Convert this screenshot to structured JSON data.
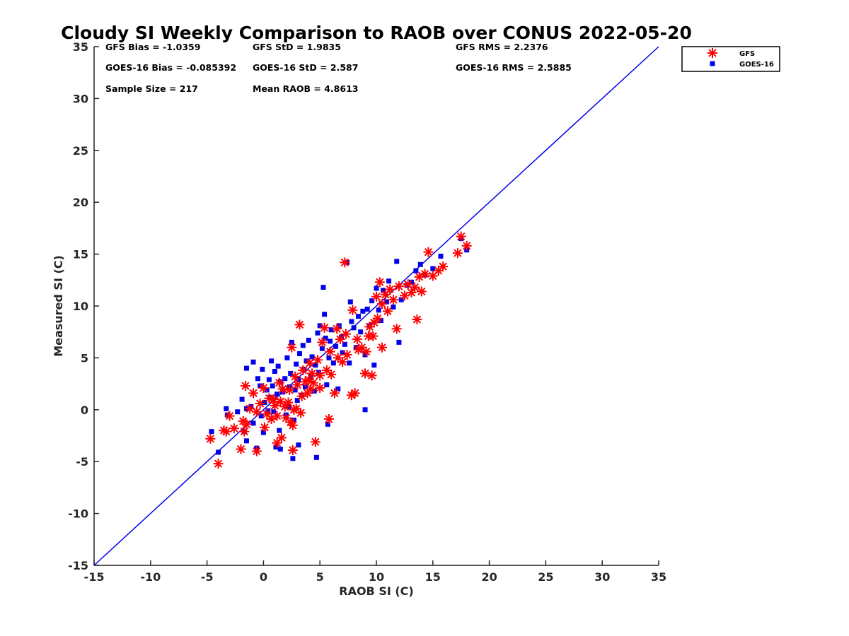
{
  "chart_data": {
    "type": "scatter",
    "title": "Cloudy SI Weekly Comparison to RAOB over CONUS 2022-05-20",
    "xlabel": "RAOB SI (C)",
    "ylabel": "Measured SI (C)",
    "xlim": [
      -15,
      35
    ],
    "ylim": [
      -15,
      35
    ],
    "x_ticks": [
      -15,
      -10,
      -5,
      0,
      5,
      10,
      15,
      20,
      25,
      30,
      35
    ],
    "y_ticks": [
      -15,
      -10,
      -5,
      0,
      5,
      10,
      15,
      20,
      25,
      30,
      35
    ],
    "grid": false,
    "legend_position": "top-right, outside plot",
    "reference_line": {
      "type": "one-to-one",
      "from": [
        -15,
        -15
      ],
      "to": [
        35,
        35
      ],
      "color": "#0000ee"
    },
    "stats": [
      {
        "label": "GFS Bias = -1.0359"
      },
      {
        "label": "GFS StD = 1.9835"
      },
      {
        "label": "GFS RMS = 2.2376"
      },
      {
        "label": "GOES-16 Bias = -0.085392"
      },
      {
        "label": "GOES-16 StD = 2.587"
      },
      {
        "label": "GOES-16 RMS = 2.5885"
      },
      {
        "label": "Sample Size = 217"
      },
      {
        "label": "Mean RAOB = 4.8613"
      }
    ],
    "series": [
      {
        "name": "GFS",
        "marker": "asterisk",
        "color": "#ff0000",
        "points": [
          [
            -4.7,
            -2.8
          ],
          [
            -4.0,
            -5.2
          ],
          [
            -3.5,
            -2.0
          ],
          [
            -3.3,
            -2.1
          ],
          [
            -3.0,
            -0.6
          ],
          [
            -2.6,
            -1.8
          ],
          [
            -2.0,
            -3.8
          ],
          [
            -1.8,
            -1.1
          ],
          [
            -1.7,
            -2.1
          ],
          [
            -1.5,
            -1.4
          ],
          [
            -1.6,
            2.3
          ],
          [
            -1.2,
            0.1
          ],
          [
            -0.9,
            1.6
          ],
          [
            -0.6,
            -0.2
          ],
          [
            -0.6,
            -4.0
          ],
          [
            -0.3,
            0.6
          ],
          [
            0.0,
            2.1
          ],
          [
            0.1,
            -1.7
          ],
          [
            0.3,
            -0.4
          ],
          [
            0.5,
            1.1
          ],
          [
            0.7,
            -0.9
          ],
          [
            0.9,
            1.0
          ],
          [
            1.0,
            0.4
          ],
          [
            1.2,
            -0.6
          ],
          [
            1.2,
            -3.2
          ],
          [
            1.4,
            2.6
          ],
          [
            1.5,
            0.8
          ],
          [
            1.6,
            -2.7
          ],
          [
            1.7,
            2.0
          ],
          [
            1.9,
            0.3
          ],
          [
            2.0,
            -0.8
          ],
          [
            2.2,
            0.7
          ],
          [
            2.3,
            1.9
          ],
          [
            2.4,
            -1.2
          ],
          [
            2.5,
            6.0
          ],
          [
            2.6,
            -1.5
          ],
          [
            2.6,
            -3.9
          ],
          [
            2.7,
            0.0
          ],
          [
            2.8,
            3.2
          ],
          [
            2.9,
            0.1
          ],
          [
            3.0,
            2.4
          ],
          [
            3.2,
            8.2
          ],
          [
            3.3,
            -0.3
          ],
          [
            3.4,
            1.3
          ],
          [
            3.5,
            3.8
          ],
          [
            3.7,
            2.7
          ],
          [
            3.9,
            1.6
          ],
          [
            4.0,
            2.9
          ],
          [
            4.1,
            4.5
          ],
          [
            4.2,
            2.0
          ],
          [
            4.3,
            3.5
          ],
          [
            4.4,
            2.6
          ],
          [
            4.6,
            -3.1
          ],
          [
            4.8,
            4.8
          ],
          [
            5.0,
            3.3
          ],
          [
            5.0,
            2.1
          ],
          [
            5.2,
            6.5
          ],
          [
            5.4,
            7.9
          ],
          [
            5.6,
            3.8
          ],
          [
            5.8,
            -0.9
          ],
          [
            5.9,
            5.6
          ],
          [
            6.0,
            3.4
          ],
          [
            6.3,
            1.6
          ],
          [
            6.5,
            7.8
          ],
          [
            6.6,
            5.0
          ],
          [
            6.8,
            6.8
          ],
          [
            7.0,
            4.6
          ],
          [
            7.2,
            14.2
          ],
          [
            7.3,
            7.3
          ],
          [
            7.4,
            5.3
          ],
          [
            7.8,
            1.4
          ],
          [
            7.9,
            9.6
          ],
          [
            8.1,
            1.6
          ],
          [
            8.3,
            6.8
          ],
          [
            8.4,
            5.8
          ],
          [
            8.7,
            6.0
          ],
          [
            9.0,
            3.5
          ],
          [
            9.1,
            5.6
          ],
          [
            9.3,
            7.1
          ],
          [
            9.4,
            8.0
          ],
          [
            9.6,
            3.3
          ],
          [
            9.7,
            7.1
          ],
          [
            9.8,
            8.4
          ],
          [
            10.0,
            10.9
          ],
          [
            10.1,
            8.8
          ],
          [
            10.3,
            12.3
          ],
          [
            10.5,
            6.0
          ],
          [
            10.5,
            10.2
          ],
          [
            10.8,
            11.1
          ],
          [
            11.0,
            9.5
          ],
          [
            11.2,
            11.6
          ],
          [
            11.5,
            10.6
          ],
          [
            11.8,
            7.8
          ],
          [
            12.0,
            11.9
          ],
          [
            12.5,
            11.0
          ],
          [
            12.8,
            12.1
          ],
          [
            13.1,
            11.3
          ],
          [
            13.4,
            11.8
          ],
          [
            13.6,
            8.7
          ],
          [
            13.8,
            12.8
          ],
          [
            14.0,
            11.4
          ],
          [
            14.3,
            13.1
          ],
          [
            14.6,
            15.2
          ],
          [
            15.0,
            12.9
          ],
          [
            15.5,
            13.4
          ],
          [
            15.9,
            13.8
          ],
          [
            17.2,
            15.1
          ],
          [
            17.5,
            16.7
          ],
          [
            18.0,
            15.8
          ]
        ]
      },
      {
        "name": "GOES-16",
        "marker": "square",
        "color": "#0000ee",
        "points": [
          [
            -4.6,
            -2.1
          ],
          [
            -4.0,
            -4.1
          ],
          [
            -3.3,
            0.1
          ],
          [
            -3.2,
            -0.5
          ],
          [
            -2.3,
            -0.2
          ],
          [
            -1.9,
            1.0
          ],
          [
            -1.7,
            -2.1
          ],
          [
            -1.5,
            -3.0
          ],
          [
            -1.5,
            0.1
          ],
          [
            -1.5,
            4.0
          ],
          [
            -1.1,
            0.3
          ],
          [
            -0.9,
            -1.3
          ],
          [
            -0.9,
            4.6
          ],
          [
            -0.6,
            -3.7
          ],
          [
            -0.5,
            3.0
          ],
          [
            -0.3,
            2.3
          ],
          [
            -0.2,
            -0.6
          ],
          [
            -0.1,
            3.9
          ],
          [
            0.0,
            -2.2
          ],
          [
            0.1,
            0.7
          ],
          [
            0.3,
            1.9
          ],
          [
            0.4,
            -0.1
          ],
          [
            0.5,
            2.9
          ],
          [
            0.6,
            1.2
          ],
          [
            0.7,
            4.7
          ],
          [
            0.8,
            2.3
          ],
          [
            0.9,
            -0.2
          ],
          [
            1.0,
            3.7
          ],
          [
            1.1,
            -3.6
          ],
          [
            1.2,
            1.5
          ],
          [
            1.3,
            4.2
          ],
          [
            1.4,
            -2.0
          ],
          [
            1.5,
            2.7
          ],
          [
            1.5,
            -3.8
          ],
          [
            1.7,
            1.7
          ],
          [
            1.9,
            3.0
          ],
          [
            2.0,
            -0.5
          ],
          [
            2.1,
            5.0
          ],
          [
            2.2,
            0.3
          ],
          [
            2.3,
            2.2
          ],
          [
            2.4,
            3.5
          ],
          [
            2.5,
            6.5
          ],
          [
            2.6,
            -4.7
          ],
          [
            2.7,
            -1.0
          ],
          [
            2.8,
            1.9
          ],
          [
            2.9,
            4.4
          ],
          [
            3.0,
            0.9
          ],
          [
            3.1,
            -3.4
          ],
          [
            3.1,
            2.9
          ],
          [
            3.2,
            5.4
          ],
          [
            3.4,
            1.4
          ],
          [
            3.5,
            6.2
          ],
          [
            3.6,
            3.9
          ],
          [
            3.7,
            2.2
          ],
          [
            3.8,
            4.7
          ],
          [
            4.0,
            6.7
          ],
          [
            4.2,
            3.2
          ],
          [
            4.3,
            5.1
          ],
          [
            4.5,
            1.8
          ],
          [
            4.6,
            4.3
          ],
          [
            4.7,
            -4.6
          ],
          [
            4.8,
            7.4
          ],
          [
            4.9,
            3.6
          ],
          [
            5.0,
            8.1
          ],
          [
            5.2,
            5.9
          ],
          [
            5.3,
            11.8
          ],
          [
            5.4,
            9.2
          ],
          [
            5.5,
            6.9
          ],
          [
            5.6,
            2.4
          ],
          [
            5.7,
            -1.4
          ],
          [
            5.8,
            5.0
          ],
          [
            5.9,
            6.6
          ],
          [
            6.0,
            7.7
          ],
          [
            6.2,
            4.5
          ],
          [
            6.4,
            6.1
          ],
          [
            6.6,
            2.0
          ],
          [
            6.7,
            8.1
          ],
          [
            6.9,
            7.0
          ],
          [
            7.0,
            5.5
          ],
          [
            7.2,
            6.3
          ],
          [
            7.4,
            14.2
          ],
          [
            7.6,
            4.5
          ],
          [
            7.7,
            10.4
          ],
          [
            7.8,
            8.5
          ],
          [
            8.0,
            7.9
          ],
          [
            8.2,
            6.0
          ],
          [
            8.4,
            9.0
          ],
          [
            8.6,
            7.5
          ],
          [
            8.8,
            9.5
          ],
          [
            9.0,
            0.0
          ],
          [
            9.0,
            5.3
          ],
          [
            9.2,
            9.7
          ],
          [
            9.4,
            8.1
          ],
          [
            9.6,
            10.5
          ],
          [
            9.8,
            4.3
          ],
          [
            10.0,
            11.7
          ],
          [
            10.2,
            9.6
          ],
          [
            10.4,
            8.6
          ],
          [
            10.6,
            11.5
          ],
          [
            10.9,
            10.4
          ],
          [
            11.1,
            12.4
          ],
          [
            11.5,
            9.9
          ],
          [
            11.8,
            14.3
          ],
          [
            12.0,
            6.5
          ],
          [
            12.2,
            10.6
          ],
          [
            12.7,
            12.0
          ],
          [
            13.1,
            12.3
          ],
          [
            13.5,
            13.4
          ],
          [
            13.9,
            14.0
          ],
          [
            14.3,
            13.0
          ],
          [
            15.0,
            13.6
          ],
          [
            15.7,
            14.8
          ],
          [
            17.5,
            16.5
          ],
          [
            18.0,
            15.4
          ]
        ]
      }
    ]
  }
}
